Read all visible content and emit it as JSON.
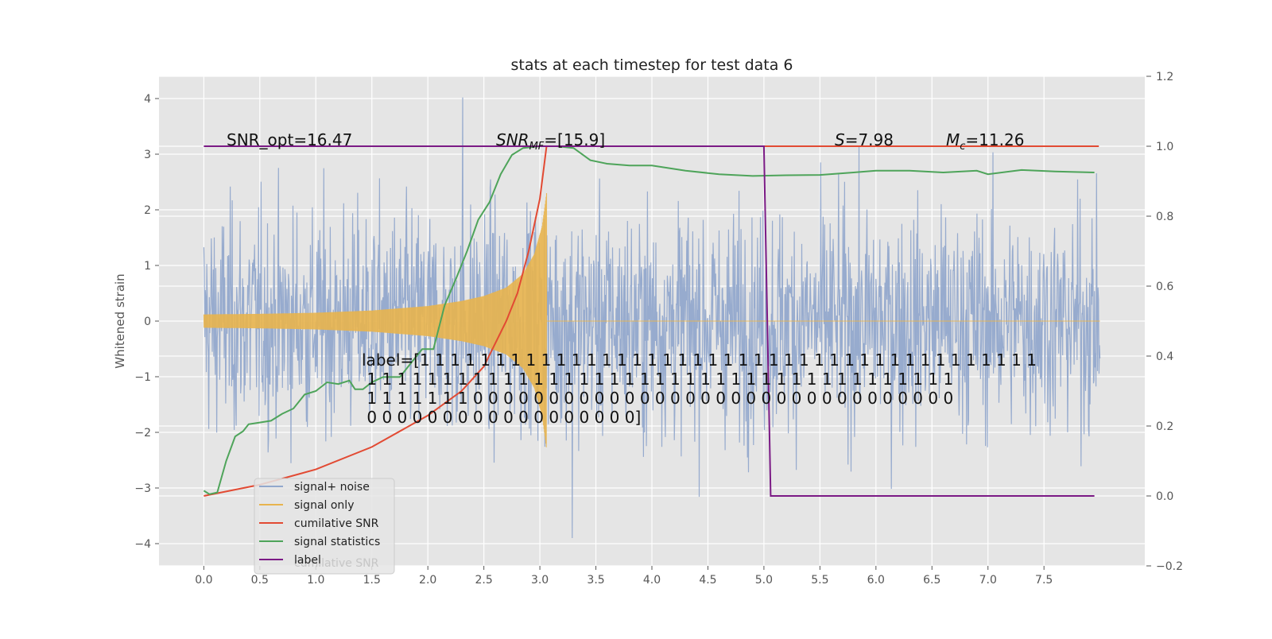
{
  "chart_data": {
    "type": "line",
    "title": "stats at each timestep for test data 6",
    "ylabel": "Whitened strain",
    "xlabel": "",
    "xlim": [
      -0.4,
      8.4
    ],
    "ylim": [
      -4.4,
      4.4
    ],
    "y2lim": [
      -0.2,
      1.2
    ],
    "x_ticks": [
      "0.0",
      "0.5",
      "1.0",
      "1.5",
      "2.0",
      "2.5",
      "3.0",
      "3.5",
      "4.0",
      "4.5",
      "5.0",
      "5.5",
      "6.0",
      "6.5",
      "7.0",
      "7.5"
    ],
    "y_ticks": [
      "4",
      "3",
      "2",
      "1",
      "0",
      "−1",
      "−2",
      "−3",
      "−4"
    ],
    "y2_ticks": [
      "1.2",
      "1.0",
      "0.8",
      "0.6",
      "0.4",
      "0.2",
      "0.0",
      "−0.2"
    ],
    "grid": true,
    "legend_position": "lower-left",
    "annotations": {
      "snr_opt": "SNR_opt=16.47",
      "snr_mf_prefix": "SNR",
      "snr_mf_sub": "MF",
      "snr_mf_value": "=[15.9]",
      "s_prefix": "S",
      "s_value": "=7.98",
      "mc_prefix": "M",
      "mc_sub": "c",
      "mc_value": "=11.26",
      "label_lines": [
        "label=[1 1 1 1 1 1 1 1 1 1 1 1 1 1 1 1 1 1 1 1 1 1 1 1 1 1 1 1 1 1 1 1 1 1 1 1 1 1 1 1 1",
        " 1 1 1 1 1 1 1 1 1 1 1 1 1 1 1 1 1 1 1 1 1 1 1 1 1 1 1 1 1 1 1 1 1 1 1 1 1 1 1",
        " 1 1 1 1 1 1 1 0 0 0 0 0 0 0 0 0 0 0 0 0 0 0 0 0 0 0 0 0 0 0 0 0 0 0 0 0 0 0 0",
        " 0 0 0 0 0 0 0 0 0 0 0 0 0 0 0 0 0 0]"
      ]
    },
    "legend_ghost_text": "cumilative SNR",
    "series": [
      {
        "name": "signal+ noise",
        "axis": "left",
        "color": "#92a8cc",
        "x_range": [
          0.0,
          8.0
        ],
        "typical_amplitude": 1.0,
        "peak_max": 4.02,
        "peak_min": -3.9
      },
      {
        "name": "signal only",
        "axis": "left",
        "color": "#e8b44e",
        "x_range": [
          0.0,
          3.06
        ],
        "envelope": [
          [
            0.0,
            0.12
          ],
          [
            0.5,
            0.13
          ],
          [
            1.0,
            0.15
          ],
          [
            1.5,
            0.19
          ],
          [
            2.0,
            0.27
          ],
          [
            2.3,
            0.36
          ],
          [
            2.5,
            0.45
          ],
          [
            2.7,
            0.6
          ],
          [
            2.85,
            0.85
          ],
          [
            2.95,
            1.2
          ],
          [
            3.02,
            1.7
          ],
          [
            3.06,
            2.3
          ]
        ]
      },
      {
        "name": "cumilative SNR",
        "axis": "right",
        "color": "#e24a33",
        "points": [
          [
            0.0,
            0.0
          ],
          [
            0.5,
            0.032
          ],
          [
            1.0,
            0.076
          ],
          [
            1.5,
            0.14
          ],
          [
            2.0,
            0.23
          ],
          [
            2.3,
            0.3
          ],
          [
            2.5,
            0.37
          ],
          [
            2.7,
            0.5
          ],
          [
            2.8,
            0.58
          ],
          [
            2.9,
            0.7
          ],
          [
            3.0,
            0.85
          ],
          [
            3.06,
            1.0
          ],
          [
            7.99,
            1.0
          ]
        ]
      },
      {
        "name": "signal statistics",
        "axis": "right",
        "color": "#4ea45a",
        "points": [
          [
            0.0,
            0.015
          ],
          [
            0.05,
            0.005
          ],
          [
            0.12,
            0.01
          ],
          [
            0.2,
            0.1
          ],
          [
            0.28,
            0.17
          ],
          [
            0.35,
            0.185
          ],
          [
            0.4,
            0.205
          ],
          [
            0.5,
            0.21
          ],
          [
            0.6,
            0.215
          ],
          [
            0.7,
            0.235
          ],
          [
            0.8,
            0.25
          ],
          [
            0.9,
            0.29
          ],
          [
            1.0,
            0.3
          ],
          [
            1.1,
            0.325
          ],
          [
            1.2,
            0.32
          ],
          [
            1.3,
            0.33
          ],
          [
            1.35,
            0.305
          ],
          [
            1.42,
            0.305
          ],
          [
            1.5,
            0.325
          ],
          [
            1.6,
            0.34
          ],
          [
            1.75,
            0.34
          ],
          [
            1.85,
            0.38
          ],
          [
            1.95,
            0.42
          ],
          [
            2.05,
            0.42
          ],
          [
            2.15,
            0.545
          ],
          [
            2.25,
            0.62
          ],
          [
            2.35,
            0.7
          ],
          [
            2.45,
            0.79
          ],
          [
            2.55,
            0.84
          ],
          [
            2.65,
            0.92
          ],
          [
            2.75,
            0.975
          ],
          [
            2.85,
            0.995
          ],
          [
            3.0,
            1.0
          ],
          [
            3.15,
            1.0
          ],
          [
            3.3,
            0.995
          ],
          [
            3.45,
            0.96
          ],
          [
            3.6,
            0.95
          ],
          [
            3.8,
            0.945
          ],
          [
            4.0,
            0.945
          ],
          [
            4.3,
            0.93
          ],
          [
            4.6,
            0.92
          ],
          [
            4.9,
            0.915
          ],
          [
            5.2,
            0.917
          ],
          [
            5.5,
            0.918
          ],
          [
            5.8,
            0.925
          ],
          [
            6.0,
            0.93
          ],
          [
            6.3,
            0.93
          ],
          [
            6.6,
            0.925
          ],
          [
            6.9,
            0.93
          ],
          [
            7.0,
            0.92
          ],
          [
            7.3,
            0.932
          ],
          [
            7.6,
            0.928
          ],
          [
            7.95,
            0.925
          ]
        ]
      },
      {
        "name": "label",
        "axis": "right",
        "color": "#7b1a85",
        "points": [
          [
            0.0,
            1.0
          ],
          [
            5.0,
            1.0
          ],
          [
            5.06,
            0.0
          ],
          [
            7.95,
            0.0
          ]
        ]
      }
    ]
  }
}
